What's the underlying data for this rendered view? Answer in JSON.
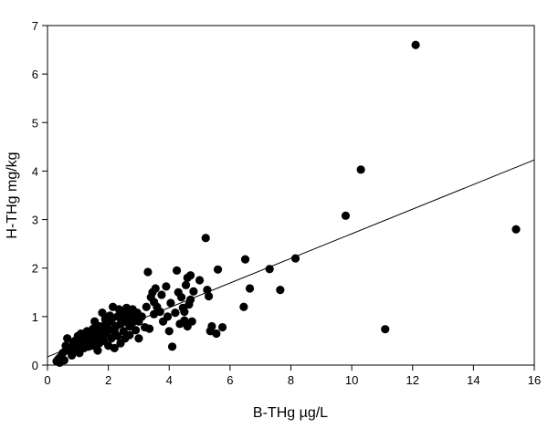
{
  "chart_data": {
    "type": "scatter",
    "title": "",
    "xlabel": "B-THg µg/L",
    "ylabel": "H-THg mg/kg",
    "xlim": [
      0,
      16
    ],
    "ylim": [
      0,
      7
    ],
    "xticks": [
      0,
      2,
      4,
      6,
      8,
      10,
      12,
      14,
      16
    ],
    "yticks": [
      0,
      1,
      2,
      3,
      4,
      5,
      6,
      7
    ],
    "grid": false,
    "legend": "none",
    "marker_color": "#000000",
    "trendline": {
      "type": "linear",
      "x": [
        0,
        16
      ],
      "y": [
        0.17,
        4.23
      ]
    },
    "series": [
      {
        "points": [
          [
            0.3,
            0.08
          ],
          [
            0.35,
            0.12
          ],
          [
            0.4,
            0.05
          ],
          [
            0.45,
            0.18
          ],
          [
            0.5,
            0.25
          ],
          [
            0.4,
            0.15
          ],
          [
            0.55,
            0.1
          ],
          [
            0.6,
            0.3
          ],
          [
            0.65,
            0.55
          ],
          [
            0.6,
            0.4
          ],
          [
            0.7,
            0.35
          ],
          [
            0.75,
            0.28
          ],
          [
            0.8,
            0.2
          ],
          [
            0.85,
            0.45
          ],
          [
            0.9,
            0.5
          ],
          [
            0.95,
            0.38
          ],
          [
            1.0,
            0.3
          ],
          [
            1.0,
            0.6
          ],
          [
            1.05,
            0.25
          ],
          [
            1.1,
            0.42
          ],
          [
            1.1,
            0.65
          ],
          [
            1.15,
            0.5
          ],
          [
            1.2,
            0.35
          ],
          [
            1.25,
            0.55
          ],
          [
            1.3,
            0.45
          ],
          [
            1.3,
            0.7
          ],
          [
            1.35,
            0.38
          ],
          [
            1.4,
            0.6
          ],
          [
            1.45,
            0.5
          ],
          [
            1.5,
            0.75
          ],
          [
            1.5,
            0.4
          ],
          [
            1.55,
            0.9
          ],
          [
            1.6,
            0.55
          ],
          [
            1.6,
            0.65
          ],
          [
            1.65,
            0.3
          ],
          [
            1.7,
            0.8
          ],
          [
            1.7,
            0.45
          ],
          [
            1.75,
            0.6
          ],
          [
            1.8,
            1.08
          ],
          [
            1.8,
            0.7
          ],
          [
            1.85,
            0.5
          ],
          [
            1.9,
            0.85
          ],
          [
            1.9,
            0.95
          ],
          [
            1.95,
            0.65
          ],
          [
            2.0,
            0.75
          ],
          [
            2.0,
            0.4
          ],
          [
            2.05,
            1.02
          ],
          [
            2.1,
            0.55
          ],
          [
            2.1,
            0.9
          ],
          [
            2.15,
            1.2
          ],
          [
            2.2,
            0.7
          ],
          [
            2.2,
            0.35
          ],
          [
            2.25,
            0.8
          ],
          [
            2.3,
            1.0
          ],
          [
            2.3,
            0.6
          ],
          [
            2.35,
            1.15
          ],
          [
            2.4,
            0.85
          ],
          [
            2.4,
            0.45
          ],
          [
            2.45,
            0.95
          ],
          [
            2.5,
            1.1
          ],
          [
            2.5,
            0.7
          ],
          [
            2.55,
            0.55
          ],
          [
            2.6,
            0.9
          ],
          [
            2.6,
            1.18
          ],
          [
            2.65,
            1.05
          ],
          [
            2.7,
            0.8
          ],
          [
            2.7,
            0.62
          ],
          [
            2.75,
            1.0
          ],
          [
            2.8,
            0.88
          ],
          [
            2.8,
            1.15
          ],
          [
            2.85,
            0.95
          ],
          [
            2.9,
            0.72
          ],
          [
            2.95,
            1.08
          ],
          [
            3.0,
            0.55
          ],
          [
            3.0,
            0.9
          ],
          [
            3.1,
            1.0
          ],
          [
            3.2,
            0.78
          ],
          [
            3.25,
            1.2
          ],
          [
            3.3,
            1.92
          ],
          [
            3.35,
            0.75
          ],
          [
            3.4,
            1.4
          ],
          [
            3.45,
            1.5
          ],
          [
            3.5,
            1.3
          ],
          [
            3.5,
            1.05
          ],
          [
            3.55,
            1.58
          ],
          [
            3.6,
            1.2
          ],
          [
            3.7,
            1.1
          ],
          [
            3.75,
            1.45
          ],
          [
            3.8,
            0.9
          ],
          [
            3.9,
            1.62
          ],
          [
            3.95,
            1.0
          ],
          [
            4.0,
            0.7
          ],
          [
            4.05,
            1.28
          ],
          [
            4.1,
            0.38
          ],
          [
            4.2,
            1.08
          ],
          [
            4.25,
            1.95
          ],
          [
            4.3,
            1.5
          ],
          [
            4.35,
            0.85
          ],
          [
            4.4,
            1.4
          ],
          [
            4.45,
            1.18
          ],
          [
            4.5,
            1.1
          ],
          [
            4.5,
            0.92
          ],
          [
            4.55,
            1.65
          ],
          [
            4.6,
            1.8
          ],
          [
            4.6,
            0.8
          ],
          [
            4.65,
            1.25
          ],
          [
            4.7,
            1.35
          ],
          [
            4.75,
            0.9
          ],
          [
            4.8,
            1.52
          ],
          [
            4.7,
            1.85
          ],
          [
            5.0,
            1.75
          ],
          [
            5.2,
            2.62
          ],
          [
            5.25,
            1.55
          ],
          [
            5.3,
            1.42
          ],
          [
            5.35,
            0.7
          ],
          [
            5.4,
            0.8
          ],
          [
            5.55,
            0.65
          ],
          [
            5.6,
            1.97
          ],
          [
            5.75,
            0.78
          ],
          [
            6.45,
            1.2
          ],
          [
            6.5,
            2.18
          ],
          [
            6.65,
            1.58
          ],
          [
            7.3,
            1.98
          ],
          [
            7.65,
            1.55
          ],
          [
            8.15,
            2.2
          ],
          [
            9.8,
            3.08
          ],
          [
            10.3,
            4.03
          ],
          [
            11.1,
            0.74
          ],
          [
            12.1,
            6.6
          ],
          [
            15.4,
            2.8
          ]
        ]
      }
    ]
  }
}
